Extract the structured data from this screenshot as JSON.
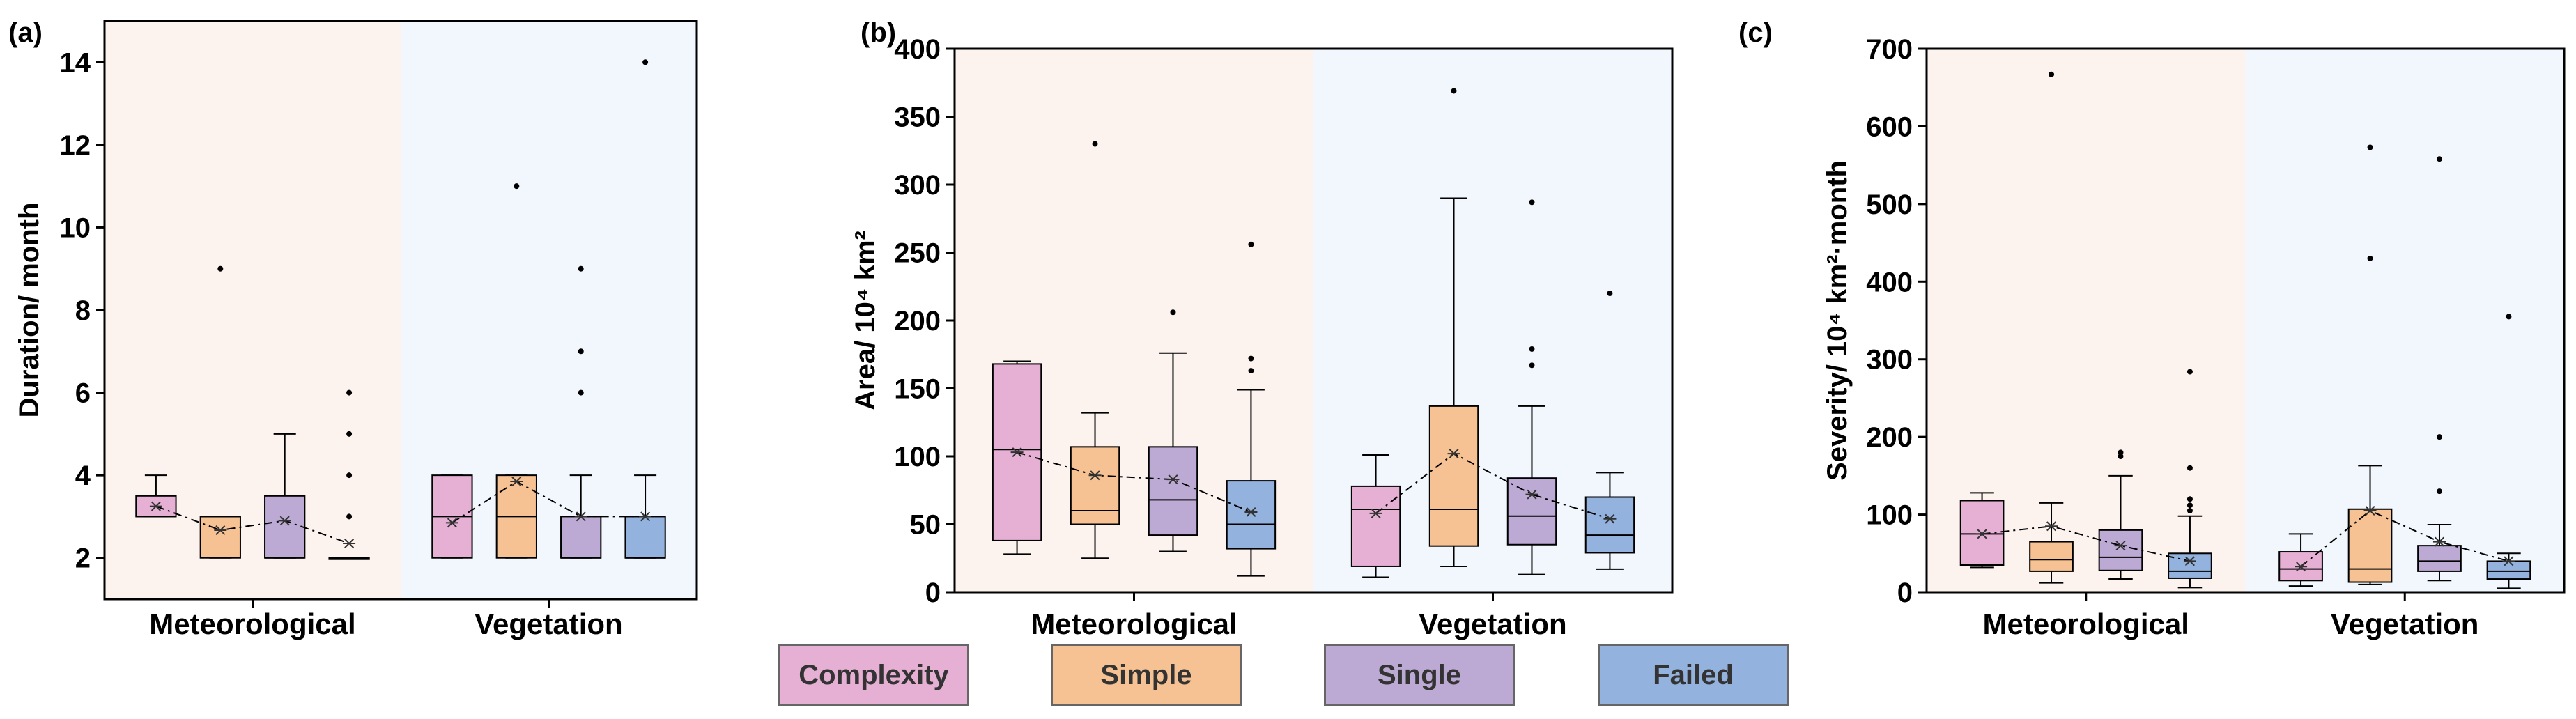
{
  "colors": {
    "Complexity": "#e6b0d5",
    "Simple": "#f6c293",
    "Single": "#bcaad4",
    "Failed": "#94b2de",
    "met_bg": "#fdf3ee",
    "veg_bg": "#f1f7fc"
  },
  "legend": {
    "items": [
      "Complexity",
      "Simple",
      "Single",
      "Failed"
    ]
  },
  "chart_data": [
    {
      "panel": "(a)",
      "type": "box",
      "title": "",
      "ylabel": "Duration/ month",
      "ylim": [
        1,
        15
      ],
      "yticks": [
        2,
        4,
        6,
        8,
        10,
        12,
        14
      ],
      "groups": [
        "Meteorological",
        "Vegetation"
      ],
      "series": [
        "Complexity",
        "Simple",
        "Single",
        "Failed"
      ],
      "boxes": [
        {
          "group": "Meteorological",
          "series": "Complexity",
          "whisker_low": 3,
          "q1": 3,
          "median": 3,
          "q3": 3.5,
          "whisker_high": 4,
          "mean": 3.25,
          "outliers": []
        },
        {
          "group": "Meteorological",
          "series": "Simple",
          "whisker_low": 2,
          "q1": 2,
          "median": 3,
          "q3": 3,
          "whisker_high": 3,
          "mean": 2.67,
          "outliers": [
            9
          ]
        },
        {
          "group": "Meteorological",
          "series": "Single",
          "whisker_low": 2,
          "q1": 2,
          "median": 2,
          "q3": 3.5,
          "whisker_high": 5,
          "mean": 2.9,
          "outliers": []
        },
        {
          "group": "Meteorological",
          "series": "Failed",
          "whisker_low": 2,
          "q1": 2,
          "median": 2,
          "q3": 2,
          "whisker_high": 2,
          "mean": 2.35,
          "outliers": [
            3,
            4,
            5,
            6
          ]
        },
        {
          "group": "Vegetation",
          "series": "Complexity",
          "whisker_low": 2,
          "q1": 2,
          "median": 3,
          "q3": 4,
          "whisker_high": 4,
          "mean": 2.85,
          "outliers": []
        },
        {
          "group": "Vegetation",
          "series": "Simple",
          "whisker_low": 2,
          "q1": 2,
          "median": 3,
          "q3": 4,
          "whisker_high": 4,
          "mean": 3.85,
          "outliers": [
            11
          ]
        },
        {
          "group": "Vegetation",
          "series": "Single",
          "whisker_low": 2,
          "q1": 2,
          "median": 2,
          "q3": 3,
          "whisker_high": 4,
          "mean": 3.0,
          "outliers": [
            6,
            7,
            9
          ]
        },
        {
          "group": "Vegetation",
          "series": "Failed",
          "whisker_low": 2,
          "q1": 2,
          "median": 2,
          "q3": 3,
          "whisker_high": 4,
          "mean": 3.0,
          "outliers": [
            14
          ]
        }
      ]
    },
    {
      "panel": "(b)",
      "type": "box",
      "title": "",
      "ylabel": "Area/ 10⁴ km²",
      "ylim": [
        0,
        400
      ],
      "yticks": [
        0,
        50,
        100,
        150,
        200,
        250,
        300,
        350,
        400
      ],
      "groups": [
        "Meteorological",
        "Vegetation"
      ],
      "series": [
        "Complexity",
        "Simple",
        "Single",
        "Failed"
      ],
      "boxes": [
        {
          "group": "Meteorological",
          "series": "Complexity",
          "whisker_low": 28,
          "q1": 38,
          "median": 105,
          "q3": 168,
          "whisker_high": 170,
          "mean": 103,
          "outliers": []
        },
        {
          "group": "Meteorological",
          "series": "Simple",
          "whisker_low": 25,
          "q1": 50,
          "median": 60,
          "q3": 107,
          "whisker_high": 132,
          "mean": 86,
          "outliers": [
            330
          ]
        },
        {
          "group": "Meteorological",
          "series": "Single",
          "whisker_low": 30,
          "q1": 42,
          "median": 68,
          "q3": 107,
          "whisker_high": 176,
          "mean": 83,
          "outliers": [
            206
          ]
        },
        {
          "group": "Meteorological",
          "series": "Failed",
          "whisker_low": 12,
          "q1": 32,
          "median": 50,
          "q3": 82,
          "whisker_high": 149,
          "mean": 59,
          "outliers": [
            163,
            172,
            256
          ]
        },
        {
          "group": "Vegetation",
          "series": "Complexity",
          "whisker_low": 11,
          "q1": 19,
          "median": 61,
          "q3": 78,
          "whisker_high": 101,
          "mean": 58,
          "outliers": []
        },
        {
          "group": "Vegetation",
          "series": "Simple",
          "whisker_low": 19,
          "q1": 34,
          "median": 61,
          "q3": 137,
          "whisker_high": 290,
          "mean": 102,
          "outliers": [
            369
          ]
        },
        {
          "group": "Vegetation",
          "series": "Single",
          "whisker_low": 13,
          "q1": 35,
          "median": 56,
          "q3": 84,
          "whisker_high": 137,
          "mean": 72,
          "outliers": [
            167,
            179,
            287
          ]
        },
        {
          "group": "Vegetation",
          "series": "Failed",
          "whisker_low": 17,
          "q1": 29,
          "median": 42,
          "q3": 70,
          "whisker_high": 88,
          "mean": 54,
          "outliers": [
            220
          ]
        }
      ]
    },
    {
      "panel": "(c)",
      "type": "box",
      "title": "",
      "ylabel": "Severity/ 10⁴ km²·month",
      "ylim": [
        0,
        700
      ],
      "yticks": [
        0,
        100,
        200,
        300,
        400,
        500,
        600,
        700
      ],
      "groups": [
        "Meteorological",
        "Vegetation"
      ],
      "series": [
        "Complexity",
        "Simple",
        "Single",
        "Failed"
      ],
      "boxes": [
        {
          "group": "Meteorological",
          "series": "Complexity",
          "whisker_low": 32,
          "q1": 35,
          "median": 75,
          "q3": 118,
          "whisker_high": 128,
          "mean": 75,
          "outliers": []
        },
        {
          "group": "Meteorological",
          "series": "Simple",
          "whisker_low": 12,
          "q1": 27,
          "median": 42,
          "q3": 65,
          "whisker_high": 115,
          "mean": 85,
          "outliers": [
            667
          ]
        },
        {
          "group": "Meteorological",
          "series": "Single",
          "whisker_low": 17,
          "q1": 28,
          "median": 45,
          "q3": 80,
          "whisker_high": 150,
          "mean": 60,
          "outliers": [
            175,
            180
          ]
        },
        {
          "group": "Meteorological",
          "series": "Failed",
          "whisker_low": 6,
          "q1": 18,
          "median": 27,
          "q3": 50,
          "whisker_high": 98,
          "mean": 40,
          "outliers": [
            105,
            112,
            120,
            160,
            284
          ]
        },
        {
          "group": "Vegetation",
          "series": "Complexity",
          "whisker_low": 8,
          "q1": 15,
          "median": 30,
          "q3": 52,
          "whisker_high": 75,
          "mean": 33,
          "outliers": []
        },
        {
          "group": "Vegetation",
          "series": "Simple",
          "whisker_low": 10,
          "q1": 13,
          "median": 30,
          "q3": 107,
          "whisker_high": 163,
          "mean": 105,
          "outliers": [
            430,
            573
          ]
        },
        {
          "group": "Vegetation",
          "series": "Single",
          "whisker_low": 15,
          "q1": 27,
          "median": 40,
          "q3": 60,
          "whisker_high": 87,
          "mean": 65,
          "outliers": [
            130,
            200,
            558
          ]
        },
        {
          "group": "Vegetation",
          "series": "Failed",
          "whisker_low": 5,
          "q1": 17,
          "median": 27,
          "q3": 40,
          "whisker_high": 50,
          "mean": 40,
          "outliers": [
            355
          ]
        }
      ]
    }
  ]
}
